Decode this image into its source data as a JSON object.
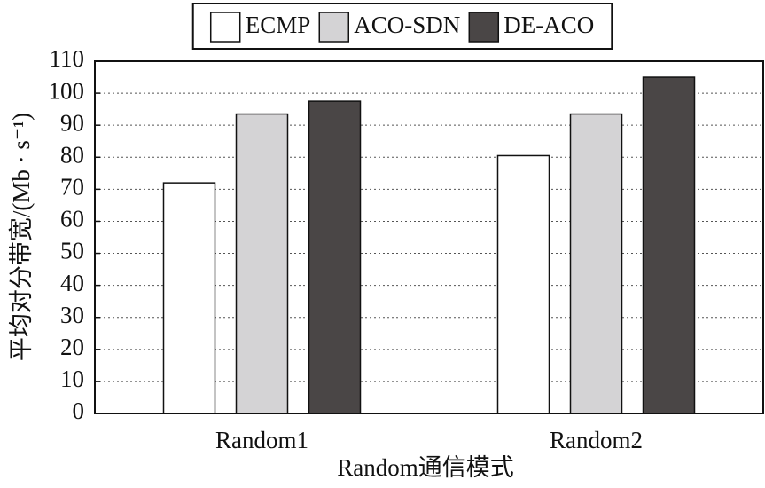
{
  "chart_data": {
    "type": "bar",
    "x_label": "Random通信模式",
    "y_label": "平均对分带宽/(Mb · s⁻¹)",
    "categories": [
      "Random1",
      "Random2"
    ],
    "series": [
      {
        "name": "ECMP",
        "color": "#ffffff",
        "values": [
          72,
          80.5
        ]
      },
      {
        "name": "ACO-SDN",
        "color": "#d4d3d5",
        "values": [
          93.5,
          93.5
        ]
      },
      {
        "name": "DE-ACO",
        "color": "#4a4646",
        "values": [
          97.5,
          105
        ]
      }
    ],
    "ylim": [
      0,
      110
    ],
    "yticks": [
      0,
      10,
      20,
      30,
      40,
      50,
      60,
      70,
      80,
      90,
      100,
      110
    ],
    "grid": true,
    "legend": "top"
  }
}
